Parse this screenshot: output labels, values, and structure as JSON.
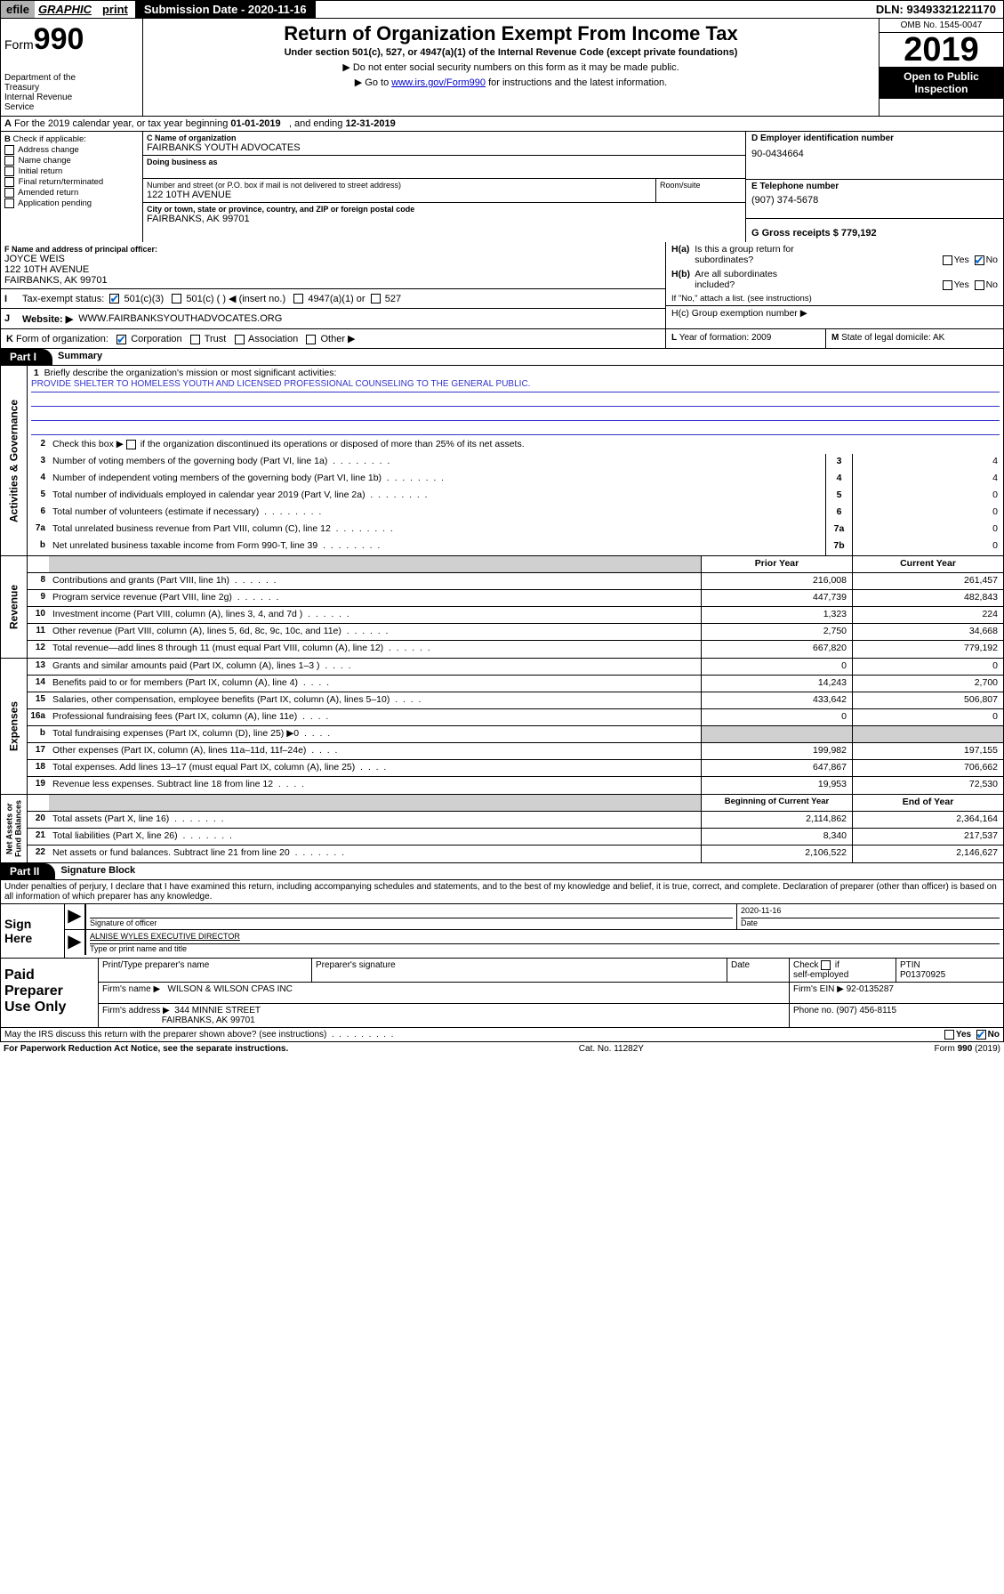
{
  "topbar": {
    "efile": "efile",
    "graphic": "GRAPHIC",
    "print": "print",
    "submission_label": "Submission Date - 2020-11-16",
    "dln": "DLN: 93493321221170"
  },
  "header": {
    "form_label": "Form",
    "form_number": "990",
    "dept": "Department of the Treasury\nInternal Revenue Service",
    "title": "Return of Organization Exempt From Income Tax",
    "subtitle": "Under section 501(c), 527, or 4947(a)(1) of the Internal Revenue Code (except private foundations)",
    "directive1": "▶ Do not enter social security numbers on this form as it may be made public.",
    "directive2_pre": "▶ Go to ",
    "directive2_link": "www.irs.gov/Form990",
    "directive2_post": " for instructions and the latest information.",
    "omb": "OMB No. 1545-0047",
    "year": "2019",
    "open_public": "Open to Public Inspection"
  },
  "line_a": "A For the 2019 calendar year, or tax year beginning 01-01-2019    , and ending 12-31-2019",
  "section_b": {
    "label": "B Check if applicable:",
    "opts": [
      "Address change",
      "Name change",
      "Initial return",
      "Final return/terminated",
      "Amended return",
      "Application pending"
    ]
  },
  "section_c": {
    "name_label": "C Name of organization",
    "name": "FAIRBANKS YOUTH ADVOCATES",
    "dba_label": "Doing business as",
    "dba": "",
    "addr_label": "Number and street (or P.O. box if mail is not delivered to street address)",
    "addr": "122 10TH AVENUE",
    "room_label": "Room/suite",
    "city_label": "City or town, state or province, country, and ZIP or foreign postal code",
    "city": "FAIRBANKS, AK  99701"
  },
  "section_d": {
    "ein_label": "D Employer identification number",
    "ein": "90-0434664",
    "phone_label": "E Telephone number",
    "phone": "(907) 374-5678",
    "receipts_label": "G Gross receipts $ 779,192"
  },
  "section_f": {
    "label": "F Name and address of principal officer:",
    "name": "JOYCE WEIS",
    "addr1": "122 10TH AVENUE",
    "addr2": "FAIRBANKS, AK  99701"
  },
  "section_h": {
    "a_label": "H(a)  Is this a group return for subordinates?",
    "b_label": "H(b)  Are all subordinates included?",
    "b_note": "If \"No,\" attach a list. (see instructions)",
    "c_label": "H(c)  Group exemption number ▶"
  },
  "section_i": {
    "label": "I   Tax-exempt status:",
    "opt1": "501(c)(3)",
    "opt2": "501(c) (   ) ◀ (insert no.)",
    "opt3": "4947(a)(1) or",
    "opt4": "527"
  },
  "section_j": {
    "label": "J   Website: ▶",
    "value": "WWW.FAIRBANKSYOUTHADVOCATES.ORG"
  },
  "section_k": {
    "label": "K Form of organization:",
    "opts": [
      "Corporation",
      "Trust",
      "Association",
      "Other ▶"
    ]
  },
  "section_l": {
    "label": "L Year of formation: 2009"
  },
  "section_m": {
    "label": "M State of legal domicile: AK"
  },
  "part1": {
    "header": "Part I",
    "title": "Summary",
    "line1_label": "1  Briefly describe the organization's mission or most significant activities:",
    "mission": "PROVIDE SHELTER TO HOMELESS YOUTH AND LICENSED PROFESSIONAL COUNSELING TO THE GENERAL PUBLIC.",
    "line2": "Check this box ▶ ☐  if the organization discontinued its operations or disposed of more than 25% of its net assets.",
    "governance_lines": [
      {
        "num": "3",
        "text": "Number of voting members of the governing body (Part VI, line 1a)",
        "box": "3",
        "val": "4"
      },
      {
        "num": "4",
        "text": "Number of independent voting members of the governing body (Part VI, line 1b)",
        "box": "4",
        "val": "4"
      },
      {
        "num": "5",
        "text": "Total number of individuals employed in calendar year 2019 (Part V, line 2a)",
        "box": "5",
        "val": "0"
      },
      {
        "num": "6",
        "text": "Total number of volunteers (estimate if necessary)",
        "box": "6",
        "val": "0"
      },
      {
        "num": "7a",
        "text": "Total unrelated business revenue from Part VIII, column (C), line 12",
        "box": "7a",
        "val": "0"
      },
      {
        "num": "b",
        "text": "Net unrelated business taxable income from Form 990-T, line 39",
        "box": "7b",
        "val": "0"
      }
    ],
    "col_prior": "Prior Year",
    "col_current": "Current Year",
    "revenue_lines": [
      {
        "num": "8",
        "text": "Contributions and grants (Part VIII, line 1h)",
        "prior": "216,008",
        "current": "261,457"
      },
      {
        "num": "9",
        "text": "Program service revenue (Part VIII, line 2g)",
        "prior": "447,739",
        "current": "482,843"
      },
      {
        "num": "10",
        "text": "Investment income (Part VIII, column (A), lines 3, 4, and 7d )",
        "prior": "1,323",
        "current": "224"
      },
      {
        "num": "11",
        "text": "Other revenue (Part VIII, column (A), lines 5, 6d, 8c, 9c, 10c, and 11e)",
        "prior": "2,750",
        "current": "34,668"
      },
      {
        "num": "12",
        "text": "Total revenue—add lines 8 through 11 (must equal Part VIII, column (A), line 12)",
        "prior": "667,820",
        "current": "779,192"
      }
    ],
    "expense_lines": [
      {
        "num": "13",
        "text": "Grants and similar amounts paid (Part IX, column (A), lines 1–3 )",
        "prior": "0",
        "current": "0"
      },
      {
        "num": "14",
        "text": "Benefits paid to or for members (Part IX, column (A), line 4)",
        "prior": "14,243",
        "current": "2,700"
      },
      {
        "num": "15",
        "text": "Salaries, other compensation, employee benefits (Part IX, column (A), lines 5–10)",
        "prior": "433,642",
        "current": "506,807"
      },
      {
        "num": "16a",
        "text": "Professional fundraising fees (Part IX, column (A), line 11e)",
        "prior": "0",
        "current": "0"
      },
      {
        "num": "b",
        "text": "Total fundraising expenses (Part IX, column (D), line 25) ▶0",
        "prior": "",
        "current": "",
        "shade": true
      },
      {
        "num": "17",
        "text": "Other expenses (Part IX, column (A), lines 11a–11d, 11f–24e)",
        "prior": "199,982",
        "current": "197,155"
      },
      {
        "num": "18",
        "text": "Total expenses. Add lines 13–17 (must equal Part IX, column (A), line 25)",
        "prior": "647,867",
        "current": "706,662"
      },
      {
        "num": "19",
        "text": "Revenue less expenses. Subtract line 18 from line 12",
        "prior": "19,953",
        "current": "72,530"
      }
    ],
    "col_begin": "Beginning of Current Year",
    "col_end": "End of Year",
    "netassets_lines": [
      {
        "num": "20",
        "text": "Total assets (Part X, line 16)",
        "prior": "2,114,862",
        "current": "2,364,164"
      },
      {
        "num": "21",
        "text": "Total liabilities (Part X, line 26)",
        "prior": "8,340",
        "current": "217,537"
      },
      {
        "num": "22",
        "text": "Net assets or fund balances. Subtract line 21 from line 20",
        "prior": "2,106,522",
        "current": "2,146,627"
      }
    ]
  },
  "part2": {
    "header": "Part II",
    "title": "Signature Block",
    "intro": "Under penalties of perjury, I declare that I have examined this return, including accompanying schedules and statements, and to the best of my knowledge and belief, it is true, correct, and complete. Declaration of preparer (other than officer) is based on all information of which preparer has any knowledge.",
    "sign_here": "Sign Here",
    "sig_officer_label": "Signature of officer",
    "sig_date": "2020-11-16",
    "sig_date_label": "Date",
    "officer_name": "ALNISE WYLES  EXECUTIVE DIRECTOR",
    "officer_name_label": "Type or print name and title",
    "paid_label": "Paid Preparer Use Only",
    "prep_name_label": "Print/Type preparer's name",
    "prep_sig_label": "Preparer's signature",
    "prep_date_label": "Date",
    "prep_check_label": "Check ☐ if self-employed",
    "ptin_label": "PTIN",
    "ptin": "P01370925",
    "firm_name_label": "Firm's name    ▶",
    "firm_name": "WILSON & WILSON CPAS INC",
    "firm_ein_label": "Firm's EIN ▶ 92-0135287",
    "firm_addr_label": "Firm's address ▶",
    "firm_addr": "344 MINNIE STREET",
    "firm_city": "FAIRBANKS, AK  99701",
    "firm_phone_label": "Phone no. (907) 456-8115",
    "discuss": "May the IRS discuss this return with the preparer shown above? (see instructions)",
    "yes": "Yes",
    "no": "No"
  },
  "footer": {
    "left": "For Paperwork Reduction Act Notice, see the separate instructions.",
    "mid": "Cat. No. 11282Y",
    "right": "Form 990 (2019)"
  },
  "colors": {
    "link": "#0000cc",
    "check": "#0066cc",
    "mission_line": "#3333cc"
  }
}
